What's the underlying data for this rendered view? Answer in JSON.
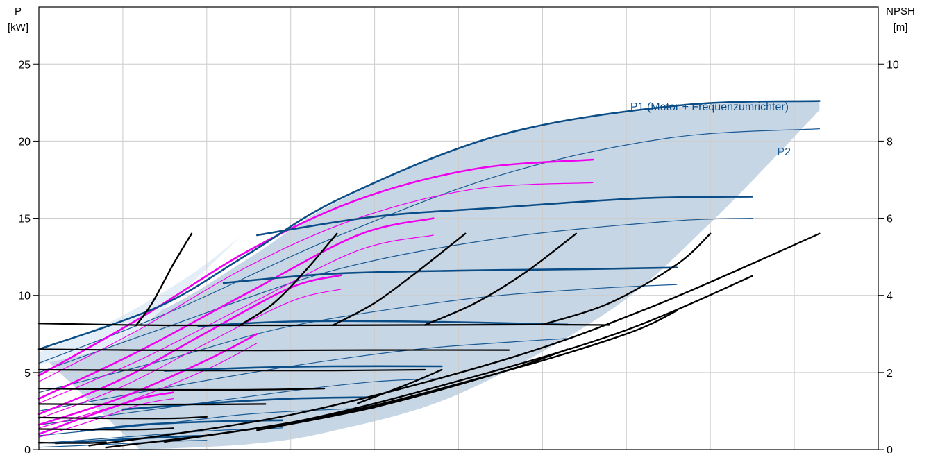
{
  "chart_data": {
    "type": "line",
    "title": "",
    "left_axis": {
      "label": "P",
      "unit": "[kW]",
      "range": [
        0,
        28.7
      ],
      "ticks": [
        "0",
        "5",
        "10",
        "15",
        "20",
        "25"
      ],
      "tick_values": [
        0,
        5,
        10,
        15,
        20,
        25
      ]
    },
    "right_axis": {
      "label": "NPSH",
      "unit": "[m]",
      "range": [
        0,
        11.48
      ],
      "ticks": [
        "0",
        "2",
        "4",
        "6",
        "8",
        "10"
      ],
      "tick_values": [
        0,
        2,
        4,
        6,
        8,
        10
      ]
    },
    "x_axis": {
      "range": [
        0,
        10
      ],
      "vertical_gridlines": 10,
      "tick_labels": []
    },
    "grid": true,
    "colors": {
      "p1": "#0b4d86",
      "p2": "#1a5a93",
      "magenta": "#ee00ee",
      "npsh": "#000000",
      "envelope": "#c7d6e5",
      "envelope_light": "#e4eef8",
      "grid": "#cccccc"
    },
    "labels": {
      "p1": "P1 (Motor + Frequenzumrichter)",
      "p2": "P2"
    },
    "envelope_upper": [
      [
        0,
        6.3
      ],
      [
        1.44,
        9
      ],
      [
        2.5,
        12.4
      ],
      [
        3.6,
        16.2
      ],
      [
        5.5,
        20.4
      ],
      [
        7.6,
        22.2
      ],
      [
        9.3,
        22.6
      ]
    ],
    "envelope_lower": [
      [
        9.3,
        22.0
      ],
      [
        8.0,
        14.7
      ],
      [
        6.8,
        9.0
      ],
      [
        5.0,
        3.6
      ],
      [
        3.5,
        1.2
      ],
      [
        2.5,
        0.35
      ],
      [
        1.2,
        0.0
      ]
    ],
    "envelope_light_upper": [
      [
        0,
        6.3
      ],
      [
        0.9,
        8.4
      ],
      [
        1.8,
        11.3
      ],
      [
        2.4,
        13.8
      ]
    ],
    "envelope_light_lower": [
      [
        2.4,
        13.8
      ],
      [
        1.5,
        9.2
      ],
      [
        0.9,
        6.8
      ],
      [
        0,
        5.5
      ]
    ],
    "p1_curves": [
      {
        "x": [
          0,
          1.44,
          2.5,
          3.6,
          5.5,
          7.6,
          9.3
        ],
        "y": [
          6.5,
          9.3,
          12.7,
          16.3,
          20.4,
          22.3,
          22.6
        ]
      },
      {
        "x": [
          2.6,
          4.0,
          5.5,
          7.2,
          8.5
        ],
        "y": [
          13.9,
          15.1,
          15.7,
          16.3,
          16.4
        ]
      },
      {
        "x": [
          2.2,
          3.5,
          5.0,
          6.5,
          7.6
        ],
        "y": [
          10.8,
          11.4,
          11.6,
          11.7,
          11.8
        ]
      },
      {
        "x": [
          1.9,
          3.0,
          4.5,
          6.3
        ],
        "y": [
          8.0,
          8.3,
          8.3,
          8.1
        ]
      },
      {
        "x": [
          1.5,
          2.5,
          3.5,
          4.8
        ],
        "y": [
          5.1,
          5.3,
          5.4,
          5.4
        ]
      },
      {
        "x": [
          1.0,
          2.0,
          3.0,
          4.0
        ],
        "y": [
          2.6,
          3.0,
          3.3,
          3.4
        ]
      },
      {
        "x": [
          0.5,
          1.2,
          2.0,
          2.9
        ],
        "y": [
          1.2,
          1.6,
          1.8,
          1.9
        ]
      },
      {
        "x": [
          0.2,
          0.8,
          1.5,
          2.0
        ],
        "y": [
          0.4,
          0.6,
          0.8,
          0.9
        ]
      }
    ],
    "p2_curves": [
      {
        "x": [
          0,
          1.6,
          3.5,
          5.5,
          7.5,
          9.3
        ],
        "y": [
          5.6,
          9.0,
          13.7,
          17.8,
          20.2,
          20.8
        ]
      },
      {
        "x": [
          0,
          1.5,
          3.5,
          5.5,
          7.5,
          8.5
        ],
        "y": [
          5.0,
          7.9,
          11.6,
          13.7,
          14.8,
          15.0
        ]
      },
      {
        "x": [
          0,
          1.5,
          3.0,
          5.0,
          6.5,
          7.6
        ],
        "y": [
          3.7,
          5.8,
          8.0,
          9.7,
          10.4,
          10.7
        ]
      },
      {
        "x": [
          0,
          1.5,
          3.0,
          4.5,
          5.7,
          6.3
        ],
        "y": [
          2.5,
          4.0,
          5.4,
          6.5,
          7.0,
          7.2
        ]
      },
      {
        "x": [
          0,
          1.5,
          3.0,
          4.0,
          4.8
        ],
        "y": [
          1.6,
          2.7,
          3.8,
          4.4,
          4.6
        ]
      },
      {
        "x": [
          0,
          1.5,
          2.5,
          3.5,
          4.0
        ],
        "y": [
          0.9,
          1.7,
          2.3,
          2.6,
          2.7
        ]
      },
      {
        "x": [
          0,
          1.0,
          2.0,
          2.9
        ],
        "y": [
          0.4,
          0.8,
          1.2,
          1.4
        ]
      },
      {
        "x": [
          0,
          0.7,
          1.4,
          2.0
        ],
        "y": [
          0.15,
          0.3,
          0.5,
          0.6
        ]
      }
    ],
    "magenta_thick": [
      {
        "x": [
          0,
          1.2,
          2.5,
          3.8,
          5.2,
          6.6
        ],
        "y": [
          4.8,
          8.5,
          12.9,
          16.2,
          18.2,
          18.8
        ]
      },
      {
        "x": [
          0,
          1.2,
          2.5,
          3.8,
          4.7
        ],
        "y": [
          3.3,
          6.4,
          10.2,
          13.9,
          15.0
        ]
      },
      {
        "x": [
          0,
          1.0,
          2.0,
          3.0,
          3.6
        ],
        "y": [
          2.3,
          4.6,
          7.6,
          10.5,
          11.3
        ]
      },
      {
        "x": [
          0,
          1.0,
          2.0,
          2.6
        ],
        "y": [
          1.6,
          3.4,
          5.8,
          7.5
        ]
      },
      {
        "x": [
          0,
          0.6,
          1.2,
          1.6
        ],
        "y": [
          1.0,
          2.2,
          3.3,
          3.7
        ]
      }
    ],
    "magenta_thin": [
      {
        "x": [
          0,
          1.2,
          2.5,
          3.8,
          5.2,
          6.6
        ],
        "y": [
          4.4,
          7.8,
          11.9,
          15.0,
          16.9,
          17.3
        ]
      },
      {
        "x": [
          0,
          1.2,
          2.5,
          3.8,
          4.7
        ],
        "y": [
          3.0,
          5.8,
          9.4,
          12.9,
          13.9
        ]
      },
      {
        "x": [
          0,
          1.0,
          2.0,
          3.0,
          3.6
        ],
        "y": [
          2.0,
          4.1,
          6.9,
          9.6,
          10.4
        ]
      },
      {
        "x": [
          0,
          1.0,
          2.0,
          2.6
        ],
        "y": [
          1.4,
          3.0,
          5.2,
          6.9
        ]
      },
      {
        "x": [
          0,
          0.6,
          1.2,
          1.6
        ],
        "y": [
          0.8,
          1.8,
          2.9,
          3.3
        ]
      }
    ],
    "npsh_flat_lines": [
      {
        "x": [
          0,
          1.5,
          3.0,
          4.5,
          6.0,
          6.8
        ],
        "y": [
          3.27,
          3.22,
          3.22,
          3.23,
          3.24,
          3.23
        ]
      },
      {
        "x": [
          0,
          2.0,
          4.0,
          5.6
        ],
        "y": [
          2.6,
          2.57,
          2.58,
          2.58
        ]
      },
      {
        "x": [
          0,
          2.0,
          3.5,
          4.6
        ],
        "y": [
          2.07,
          2.05,
          2.05,
          2.07
        ]
      },
      {
        "x": [
          0,
          1.5,
          2.5,
          3.4
        ],
        "y": [
          1.58,
          1.55,
          1.55,
          1.58
        ]
      },
      {
        "x": [
          0,
          1.0,
          2.0,
          2.7
        ],
        "y": [
          1.18,
          1.17,
          1.17,
          1.18
        ]
      },
      {
        "x": [
          0,
          0.8,
          1.6,
          2.0
        ],
        "y": [
          0.83,
          0.81,
          0.81,
          0.85
        ]
      },
      {
        "x": [
          0,
          0.6,
          1.2,
          1.6
        ],
        "y": [
          0.53,
          0.52,
          0.52,
          0.55
        ]
      },
      {
        "x": [
          0,
          0.3,
          0.6,
          0.8
        ],
        "y": [
          0.18,
          0.17,
          0.17,
          0.19
        ]
      }
    ],
    "npsh_rising_curves": [
      {
        "x": [
          1.16,
          1.35,
          1.6,
          1.82
        ],
        "y": [
          3.22,
          3.8,
          4.8,
          5.6
        ]
      },
      {
        "x": [
          2.4,
          2.8,
          3.2,
          3.55
        ],
        "y": [
          3.23,
          3.8,
          4.7,
          5.6
        ]
      },
      {
        "x": [
          3.5,
          4.0,
          4.5,
          5.08
        ],
        "y": [
          3.22,
          3.8,
          4.6,
          5.6
        ]
      },
      {
        "x": [
          4.6,
          5.2,
          5.8,
          6.4
        ],
        "y": [
          3.23,
          3.8,
          4.6,
          5.6
        ]
      },
      {
        "x": [
          6.0,
          6.8,
          7.6,
          8.0
        ],
        "y": [
          3.24,
          3.8,
          4.8,
          5.6
        ]
      },
      {
        "x": [
          0.6,
          3.0,
          5.5,
          7.3,
          9.3
        ],
        "y": [
          0.1,
          0.9,
          2.3,
          3.7,
          5.6
        ]
      },
      {
        "x": [
          0.8,
          3.0,
          5.2,
          7.0,
          8.5
        ],
        "y": [
          0.05,
          0.7,
          1.9,
          3.1,
          4.5
        ]
      },
      {
        "x": [
          1.5,
          3.5,
          5.5,
          7.0,
          7.6
        ],
        "y": [
          0.2,
          0.9,
          2.0,
          3.0,
          3.6
        ]
      },
      {
        "x": [
          2.6,
          4.0,
          5.5,
          6.3
        ],
        "y": [
          0.5,
          1.1,
          2.0,
          2.6
        ]
      },
      {
        "x": [
          3.8,
          4.4,
          4.8
        ],
        "y": [
          1.2,
          1.7,
          2.07
        ]
      }
    ]
  }
}
